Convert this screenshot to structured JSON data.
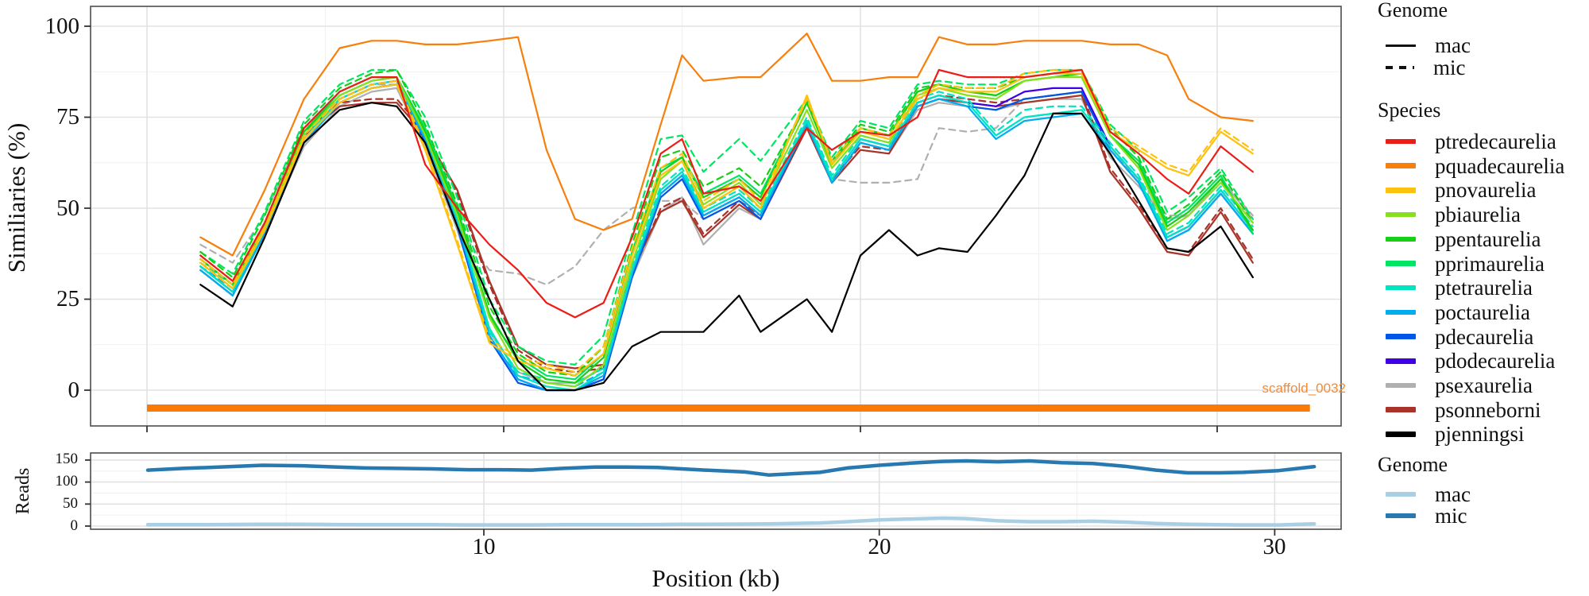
{
  "top_panel": {
    "y_label": "Similiaries (%)",
    "y_ticks": [
      "100",
      "75",
      "50",
      "25",
      "0"
    ],
    "scaffold_label": "scaffold_0032",
    "scaffold_color": "#f78a31",
    "scaffold_bar_color": "#f97b06"
  },
  "bottom_panel": {
    "y_label": "Reads",
    "y_ticks": [
      "150",
      "100",
      "50",
      "0"
    ],
    "x_ticks": [
      "10",
      "20",
      "30"
    ],
    "x_label": "Position (kb)"
  },
  "legend_genome_top": {
    "title": "Genome",
    "items": [
      {
        "label": "mac",
        "style": "solid"
      },
      {
        "label": "mic",
        "style": "dashed"
      }
    ]
  },
  "legend_species": {
    "title": "Species",
    "items": [
      {
        "label": "ptredecaurelia",
        "color": "#ec1c16"
      },
      {
        "label": "pquadecaurelia",
        "color": "#f77f0c"
      },
      {
        "label": "pnovaurelia",
        "color": "#fec10d"
      },
      {
        "label": "pbiaurelia",
        "color": "#86e01e"
      },
      {
        "label": "ppentaurelia",
        "color": "#16d016"
      },
      {
        "label": "pprimaurelia",
        "color": "#00e563"
      },
      {
        "label": "ptetraurelia",
        "color": "#00e5c0"
      },
      {
        "label": "poctaurelia",
        "color": "#00aeef"
      },
      {
        "label": "pdecaurelia",
        "color": "#0057e7"
      },
      {
        "label": "pdodecaurelia",
        "color": "#3f00e7"
      },
      {
        "label": "psexaurelia",
        "color": "#b0b0b0"
      },
      {
        "label": "psonneborni",
        "color": "#a93328"
      },
      {
        "label": "pjenningsi",
        "color": "#000000"
      }
    ]
  },
  "legend_genome_bottom": {
    "title": "Genome",
    "items": [
      {
        "label": "mac",
        "color": "#a9cfe5"
      },
      {
        "label": "mic",
        "color": "#2779b0"
      }
    ]
  },
  "chart_data": {
    "type": "line",
    "title": "",
    "xlabel": "Position (kb)",
    "x_kb": [
      1.5,
      2.4,
      3.3,
      4.4,
      5.4,
      6.3,
      7.0,
      7.8,
      8.7,
      9.6,
      10.4,
      11.2,
      12.0,
      12.8,
      13.6,
      14.4,
      15.0,
      15.6,
      16.6,
      17.2,
      18.5,
      19.2,
      20.0,
      20.8,
      21.6,
      22.2,
      23.0,
      23.8,
      24.6,
      25.4,
      26.2,
      27.0,
      27.8,
      28.6,
      29.2,
      30.1,
      31.0
    ],
    "top": {
      "ylabel": "Similiaries (%)",
      "ylim": [
        0,
        100
      ],
      "grid": true,
      "scaffold_bar_kb": [
        0,
        32.6
      ],
      "series": [
        {
          "species": "psexaurelia",
          "genome": "mic",
          "values": [
            40,
            35,
            48,
            72,
            80,
            84,
            84,
            70,
            45,
            33,
            32,
            29,
            34,
            44,
            50,
            52,
            52,
            47,
            52,
            48,
            74,
            58,
            57,
            57,
            58,
            72,
            71,
            72,
            80,
            81,
            82,
            66,
            58,
            48,
            48,
            58,
            48
          ]
        },
        {
          "species": "psexaurelia",
          "genome": "mac",
          "values": [
            33,
            26,
            43,
            67,
            78,
            82,
            83,
            67,
            44,
            16,
            5,
            2,
            2,
            6,
            31,
            49,
            53,
            40,
            50,
            47,
            73,
            57,
            66,
            65,
            77,
            79,
            78,
            77,
            79,
            80,
            80,
            64,
            56,
            47,
            48,
            58,
            47
          ]
        },
        {
          "species": "psonneborni",
          "genome": "mic",
          "values": [
            37,
            30,
            46,
            71,
            79,
            80,
            80,
            71,
            54,
            29,
            11,
            6,
            5,
            6,
            32,
            50,
            53,
            43,
            52,
            48,
            73,
            58,
            67,
            66,
            79,
            81,
            80,
            79,
            80,
            81,
            82,
            61,
            51,
            39,
            38,
            50,
            36
          ]
        },
        {
          "species": "psonneborni",
          "genome": "mac",
          "values": [
            36,
            29,
            45,
            70,
            78,
            79,
            79,
            70,
            55,
            30,
            12,
            7,
            6,
            7,
            33,
            49,
            52,
            42,
            51,
            47,
            72,
            57,
            66,
            65,
            78,
            80,
            79,
            78,
            79,
            80,
            81,
            60,
            50,
            38,
            37,
            49,
            35
          ]
        },
        {
          "species": "pdodecaurelia",
          "genome": "mac",
          "values": [
            34,
            27,
            44,
            69,
            80,
            84,
            85,
            69,
            46,
            15,
            3,
            0,
            0,
            3,
            32,
            54,
            59,
            48,
            53,
            48,
            74,
            58,
            69,
            67,
            79,
            81,
            79,
            78,
            82,
            83,
            83,
            67,
            58,
            42,
            45,
            55,
            44
          ]
        },
        {
          "species": "pdecaurelia",
          "genome": "mac",
          "values": [
            33,
            26,
            43,
            68,
            79,
            83,
            84,
            68,
            45,
            14,
            2,
            0,
            0,
            3,
            31,
            53,
            58,
            47,
            52,
            47,
            73,
            57,
            68,
            66,
            78,
            80,
            78,
            77,
            80,
            81,
            82,
            66,
            57,
            41,
            44,
            54,
            43
          ]
        },
        {
          "species": "poctaurelia",
          "genome": "mic",
          "values": [
            34,
            28,
            45,
            69,
            80,
            84,
            85,
            70,
            47,
            14,
            4,
            2,
            1,
            5,
            33,
            55,
            60,
            49,
            54,
            49,
            74,
            58,
            69,
            67,
            79,
            81,
            79,
            70,
            75,
            76,
            77,
            67,
            58,
            42,
            45,
            55,
            44
          ]
        },
        {
          "species": "poctaurelia",
          "genome": "mac",
          "values": [
            33,
            26,
            43,
            68,
            79,
            83,
            84,
            69,
            46,
            15,
            3,
            0,
            0,
            4,
            32,
            54,
            59,
            48,
            53,
            48,
            73,
            57,
            68,
            66,
            78,
            80,
            78,
            69,
            74,
            75,
            76,
            66,
            57,
            41,
            44,
            54,
            43
          ]
        },
        {
          "species": "ptetraurelia",
          "genome": "mic",
          "values": [
            35,
            29,
            46,
            70,
            81,
            85,
            86,
            71,
            48,
            16,
            5,
            3,
            2,
            6,
            34,
            56,
            61,
            50,
            55,
            50,
            75,
            59,
            70,
            68,
            80,
            82,
            80,
            71,
            77,
            78,
            78,
            68,
            59,
            43,
            46,
            56,
            45
          ]
        },
        {
          "species": "ptetraurelia",
          "genome": "mac",
          "values": [
            34,
            27,
            44,
            69,
            80,
            84,
            85,
            70,
            47,
            17,
            4,
            1,
            0,
            5,
            33,
            55,
            60,
            49,
            54,
            49,
            74,
            58,
            69,
            67,
            79,
            81,
            79,
            70,
            75,
            76,
            77,
            67,
            58,
            42,
            45,
            55,
            44
          ]
        },
        {
          "species": "pprimaurelia",
          "genome": "mic",
          "values": [
            38,
            32,
            49,
            74,
            84,
            88,
            88,
            75,
            53,
            25,
            12,
            8,
            7,
            15,
            43,
            69,
            70,
            60,
            69,
            63,
            80,
            64,
            74,
            72,
            84,
            85,
            84,
            84,
            87,
            88,
            88,
            73,
            66,
            49,
            53,
            61,
            47
          ]
        },
        {
          "species": "pprimaurelia",
          "genome": "mac",
          "values": [
            36,
            29,
            46,
            71,
            82,
            86,
            86,
            72,
            50,
            20,
            9,
            4,
            3,
            10,
            38,
            61,
            64,
            54,
            59,
            54,
            79,
            63,
            72,
            70,
            82,
            84,
            82,
            81,
            85,
            86,
            87,
            70,
            63,
            46,
            50,
            59,
            43
          ]
        },
        {
          "species": "ppentaurelia",
          "genome": "mic",
          "values": [
            38,
            31,
            48,
            73,
            83,
            87,
            88,
            73,
            51,
            23,
            10,
            5,
            4,
            12,
            40,
            64,
            66,
            56,
            61,
            56,
            79,
            63,
            73,
            71,
            83,
            84,
            83,
            83,
            86,
            87,
            88,
            72,
            64,
            47,
            51,
            60,
            46
          ]
        },
        {
          "species": "ppentaurelia",
          "genome": "mac",
          "values": [
            36,
            29,
            46,
            71,
            81,
            85,
            86,
            71,
            49,
            21,
            8,
            3,
            2,
            9,
            37,
            60,
            64,
            53,
            58,
            53,
            79,
            62,
            72,
            70,
            82,
            84,
            82,
            81,
            85,
            86,
            87,
            70,
            62,
            45,
            49,
            58,
            44
          ]
        },
        {
          "species": "pbiaurelia",
          "genome": "mac",
          "values": [
            35,
            28,
            45,
            70,
            81,
            85,
            86,
            70,
            48,
            20,
            6,
            2,
            1,
            7,
            35,
            58,
            63,
            51,
            57,
            51,
            77,
            61,
            70,
            68,
            81,
            83,
            81,
            80,
            85,
            86,
            86,
            70,
            61,
            44,
            48,
            57,
            46
          ]
        },
        {
          "species": "pnovaurelia",
          "genome": "mic",
          "values": [
            36,
            29,
            45,
            70,
            80,
            84,
            85,
            67,
            41,
            14,
            9,
            7,
            5,
            12,
            39,
            61,
            65,
            52,
            58,
            52,
            80,
            63,
            72,
            70,
            81,
            84,
            83,
            83,
            87,
            88,
            88,
            72,
            67,
            62,
            60,
            72,
            66
          ]
        },
        {
          "species": "pnovaurelia",
          "genome": "mac",
          "values": [
            35,
            28,
            44,
            69,
            79,
            83,
            84,
            66,
            40,
            13,
            8,
            6,
            4,
            10,
            37,
            59,
            63,
            50,
            56,
            50,
            81,
            62,
            71,
            69,
            80,
            83,
            82,
            82,
            86,
            87,
            87,
            71,
            66,
            61,
            59,
            71,
            65
          ]
        },
        {
          "species": "pjenningsi",
          "genome": "mac",
          "values": [
            29,
            23,
            42,
            68,
            77,
            79,
            78,
            68,
            45,
            25,
            8,
            0,
            0,
            2,
            12,
            16,
            16,
            16,
            26,
            16,
            25,
            16,
            37,
            44,
            37,
            39,
            38,
            48,
            59,
            76,
            76,
            65,
            52,
            39,
            38,
            45,
            31
          ]
        },
        {
          "species": "ptredecaurelia",
          "genome": "mac",
          "values": [
            37,
            30,
            46,
            72,
            82,
            86,
            86,
            62,
            50,
            40,
            33,
            24,
            20,
            24,
            42,
            65,
            69,
            54,
            56,
            52,
            72,
            66,
            71,
            70,
            75,
            88,
            86,
            86,
            86,
            87,
            88,
            71,
            65,
            58,
            54,
            67,
            60
          ]
        },
        {
          "species": "pquadecaurelia",
          "genome": "mac",
          "values": [
            42,
            37,
            55,
            80,
            94,
            96,
            96,
            95,
            95,
            96,
            97,
            66,
            47,
            44,
            47,
            73,
            92,
            85,
            86,
            86,
            98,
            85,
            85,
            86,
            86,
            97,
            95,
            95,
            96,
            96,
            96,
            95,
            95,
            92,
            80,
            75,
            74
          ]
        }
      ]
    },
    "bottom": {
      "ylabel": "Reads",
      "ylim": [
        0,
        150
      ],
      "grid": true,
      "series": [
        {
          "genome": "mic",
          "color": "#2779b0",
          "values": [
            127,
            131,
            134,
            138,
            137,
            134,
            132,
            131,
            130,
            128,
            128,
            127,
            131,
            134,
            134,
            133,
            130,
            127,
            123,
            116,
            122,
            132,
            138,
            143,
            147,
            148,
            146,
            148,
            144,
            142,
            136,
            127,
            121,
            121,
            122,
            126,
            135
          ]
        },
        {
          "genome": "mac",
          "color": "#a9cfe5",
          "values": [
            3,
            3,
            3.5,
            4,
            4,
            3.5,
            3,
            3,
            3,
            2.5,
            2.5,
            2.5,
            3,
            3,
            3,
            3.5,
            4,
            4,
            4.5,
            5,
            7,
            10,
            14,
            16,
            18,
            17,
            12,
            10,
            10,
            11,
            9,
            6,
            4,
            3,
            2.5,
            2.5,
            5
          ]
        }
      ]
    }
  }
}
